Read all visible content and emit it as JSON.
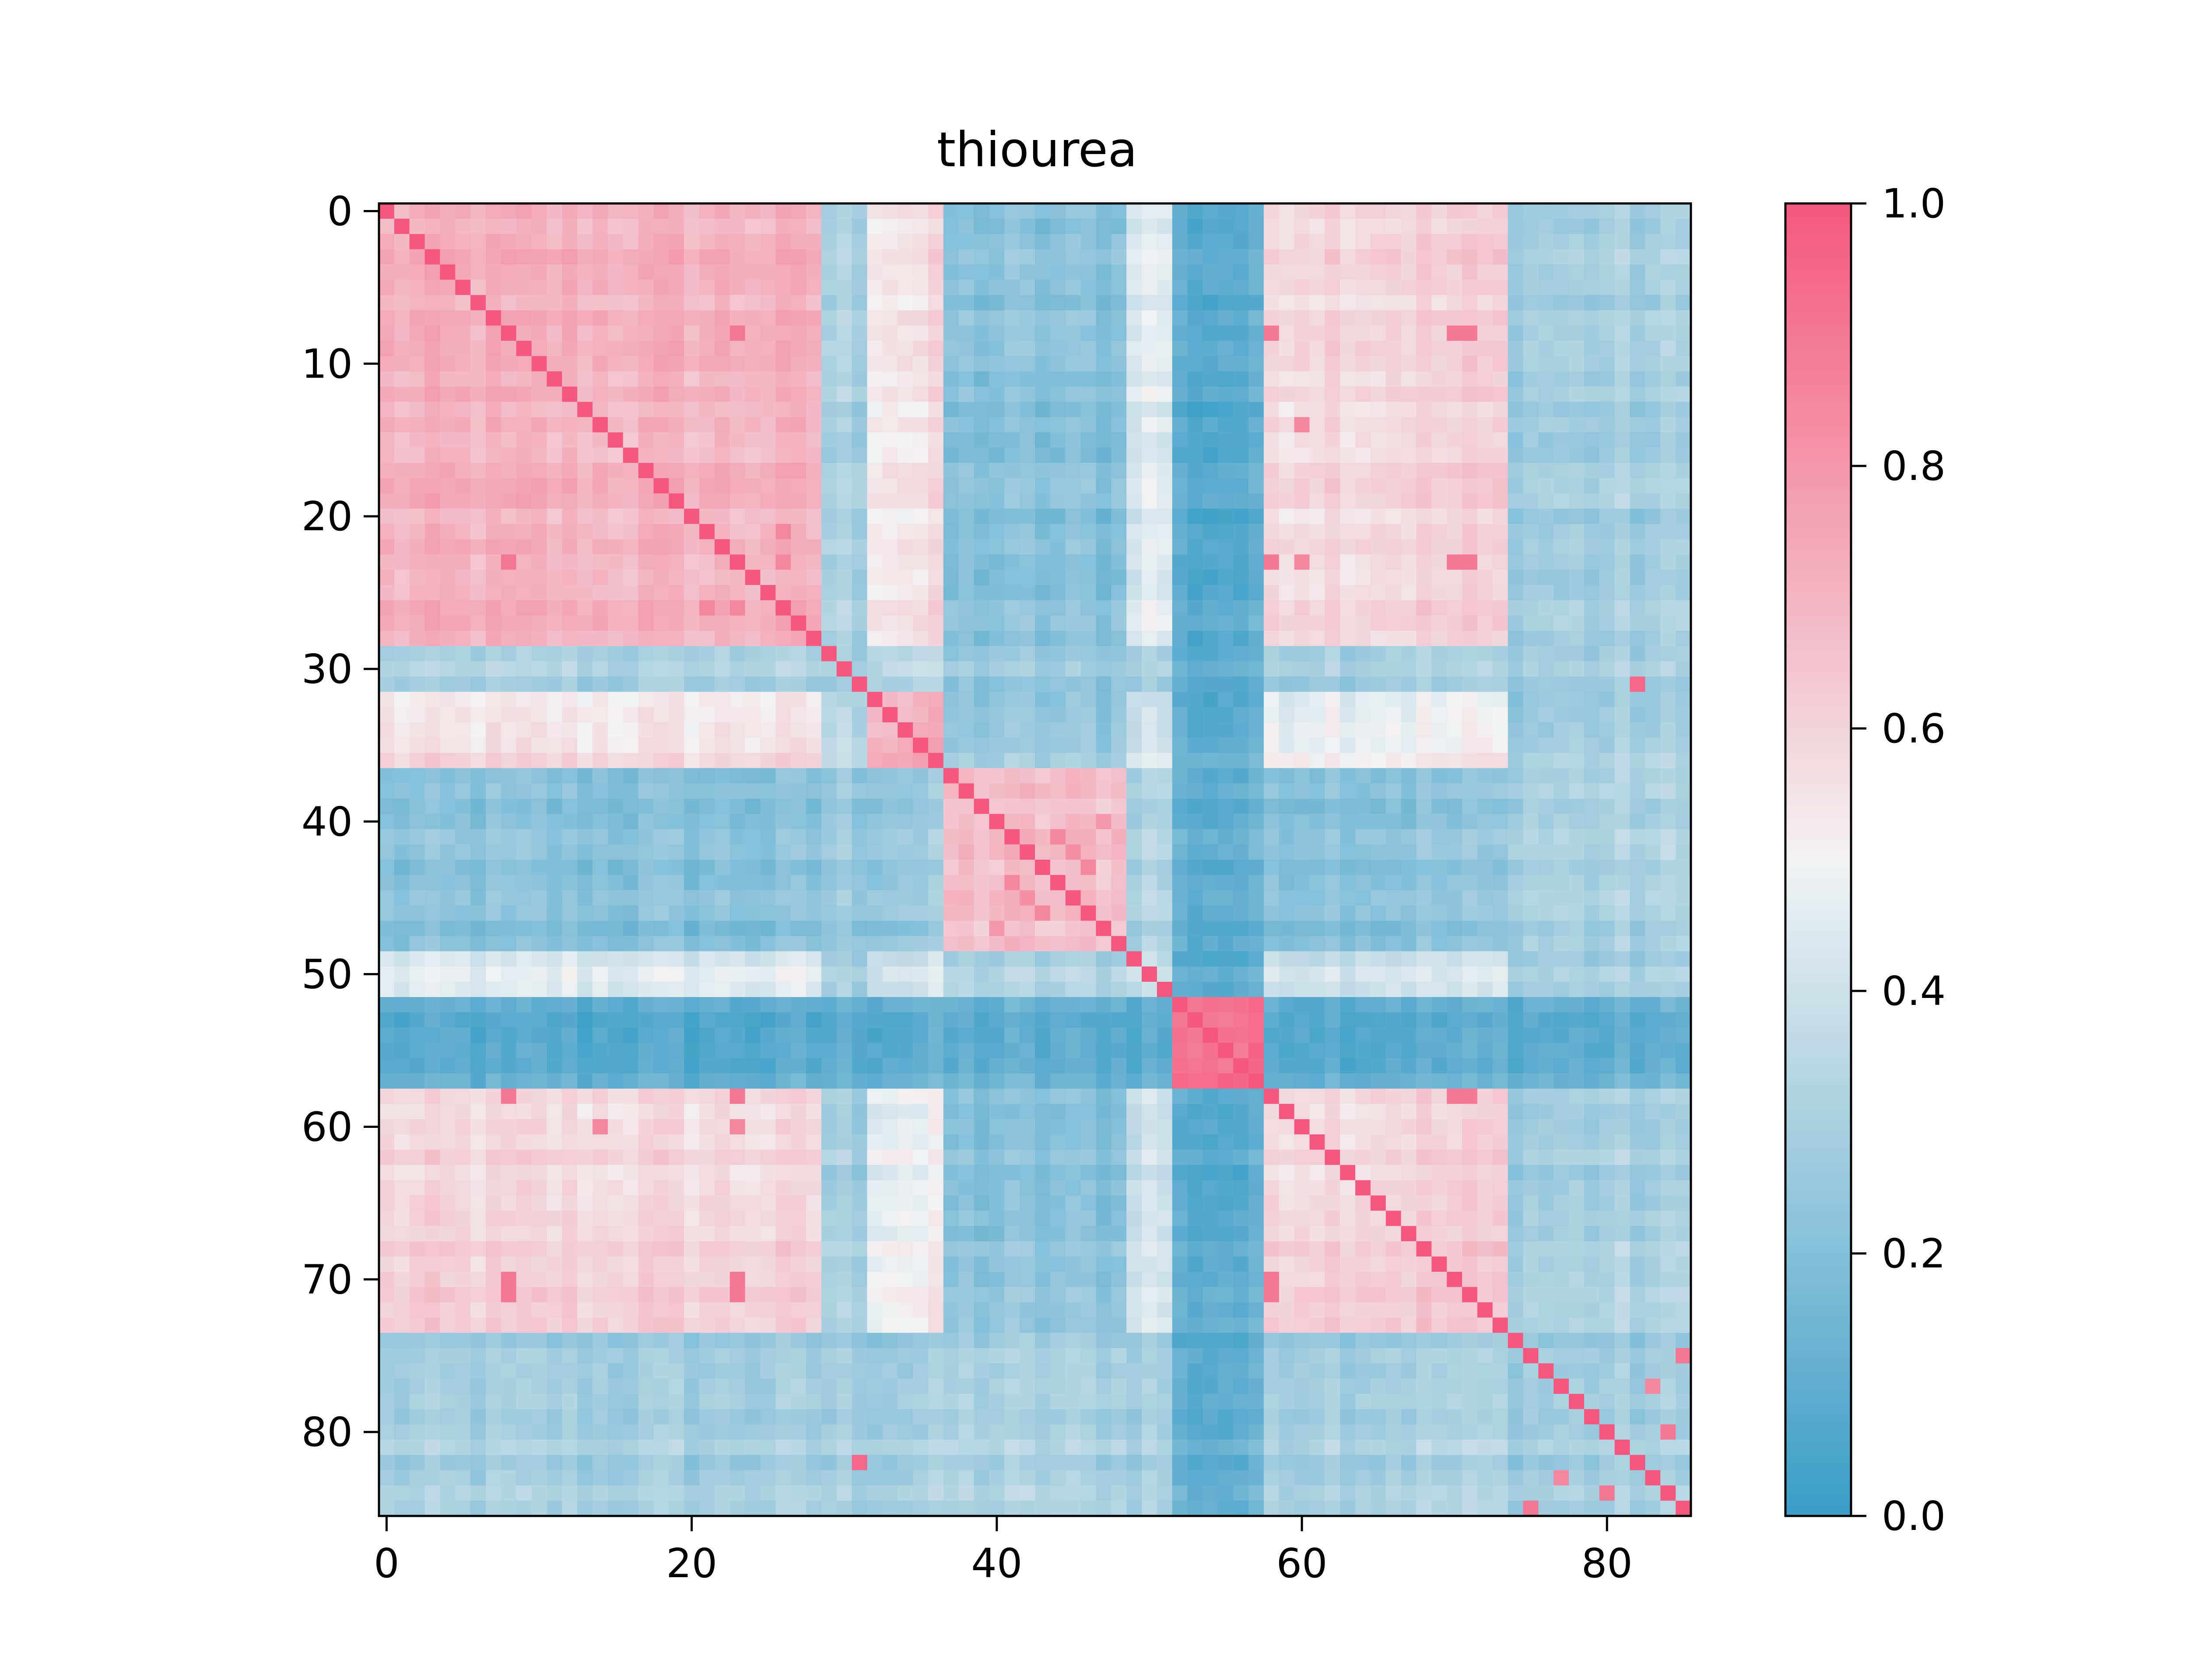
{
  "chart_data": {
    "type": "heatmap",
    "title": "thiourea",
    "xlabel": "",
    "ylabel": "",
    "size": 86,
    "x_ticks": [
      0,
      20,
      40,
      60,
      80
    ],
    "y_ticks": [
      0,
      10,
      20,
      30,
      40,
      50,
      60,
      70,
      80
    ],
    "colorbar": {
      "min": 0.0,
      "max": 1.0,
      "ticks": [
        "0.0",
        "0.2",
        "0.4",
        "0.6",
        "0.8",
        "1.0"
      ],
      "colors": {
        "low": "#3b9dc7",
        "mid": "#f2f2f2",
        "high": "#f5587f"
      }
    },
    "value_model": {
      "blocks": [
        {
          "rows": [
            0,
            28
          ],
          "within": 0.7
        },
        {
          "rows": [
            29,
            31
          ],
          "within": 0.3
        },
        {
          "rows": [
            32,
            36
          ],
          "within": 0.72
        },
        {
          "rows": [
            37,
            48
          ],
          "within": 0.66
        },
        {
          "rows": [
            49,
            51
          ],
          "within": 0.4
        },
        {
          "rows": [
            52,
            57
          ],
          "within": 0.92
        },
        {
          "rows": [
            58,
            73
          ],
          "within": 0.62
        },
        {
          "rows": [
            74,
            85
          ],
          "within": 0.28
        }
      ],
      "between": [
        [
          0.7,
          0.3,
          0.55,
          0.2,
          0.45,
          0.08,
          0.6,
          0.28
        ],
        [
          0.3,
          0.3,
          0.35,
          0.25,
          0.3,
          0.1,
          0.3,
          0.28
        ],
        [
          0.55,
          0.35,
          0.72,
          0.25,
          0.42,
          0.1,
          0.5,
          0.28
        ],
        [
          0.2,
          0.25,
          0.25,
          0.66,
          0.32,
          0.1,
          0.22,
          0.3
        ],
        [
          0.45,
          0.3,
          0.42,
          0.32,
          0.4,
          0.1,
          0.42,
          0.3
        ],
        [
          0.08,
          0.1,
          0.1,
          0.1,
          0.1,
          0.92,
          0.1,
          0.1
        ],
        [
          0.6,
          0.3,
          0.5,
          0.22,
          0.42,
          0.1,
          0.62,
          0.3
        ],
        [
          0.28,
          0.28,
          0.28,
          0.3,
          0.3,
          0.1,
          0.3,
          0.28
        ]
      ],
      "highlights": [
        [
          8,
          23,
          0.9
        ],
        [
          8,
          58,
          0.9
        ],
        [
          8,
          71,
          0.9
        ],
        [
          23,
          58,
          0.9
        ],
        [
          23,
          71,
          0.9
        ],
        [
          21,
          26,
          0.85
        ],
        [
          23,
          26,
          0.85
        ],
        [
          14,
          60,
          0.85
        ],
        [
          60,
          23,
          0.85
        ],
        [
          58,
          71,
          0.9
        ],
        [
          31,
          82,
          0.95
        ],
        [
          70,
          8,
          0.9
        ],
        [
          70,
          23,
          0.9
        ],
        [
          70,
          58,
          0.9
        ],
        [
          41,
          44,
          0.85
        ],
        [
          43,
          46,
          0.85
        ],
        [
          40,
          47,
          0.8
        ],
        [
          42,
          45,
          0.82
        ],
        [
          75,
          85,
          0.9
        ],
        [
          77,
          83,
          0.85
        ],
        [
          80,
          84,
          0.9
        ]
      ]
    }
  }
}
